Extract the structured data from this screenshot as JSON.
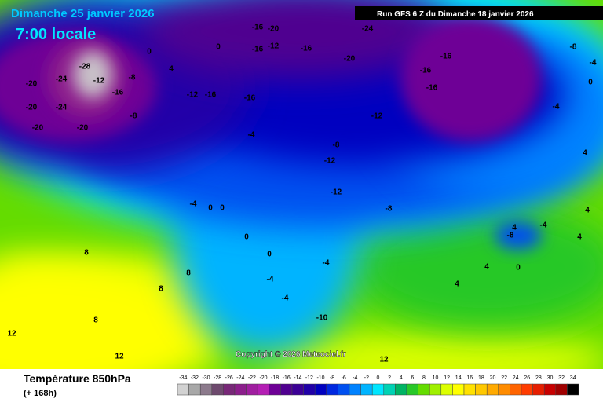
{
  "header": {
    "date": "Dimanche 25 janvier 2026",
    "time": "7:00 locale",
    "run": "Run GFS 6 Z du Dimanche 18 janvier 2026"
  },
  "copyright": "Copyright © 2026 Meteociel.fr",
  "footer": {
    "title": "Température 850hPa",
    "lead": "(+ 168h)"
  },
  "scale": {
    "values": [
      -34,
      -32,
      -30,
      -28,
      -26,
      -24,
      -22,
      -20,
      -18,
      -16,
      -14,
      -12,
      -10,
      -8,
      -6,
      -4,
      -2,
      0,
      2,
      4,
      6,
      8,
      10,
      12,
      14,
      16,
      18,
      20,
      22,
      24,
      26,
      28,
      30,
      32,
      34
    ],
    "colors": [
      "#d2d2d2",
      "#a8a8a8",
      "#8c7a8c",
      "#6e4a6e",
      "#782878",
      "#8c1e8c",
      "#a01ea0",
      "#b41eb4",
      "#6e0096",
      "#500090",
      "#3c0096",
      "#2000a8",
      "#0000c0",
      "#0028e0",
      "#0050f0",
      "#0082ff",
      "#00b4ff",
      "#00e6ff",
      "#00d2b4",
      "#00b464",
      "#28c828",
      "#64dc00",
      "#a0f000",
      "#dcff00",
      "#ffff00",
      "#ffe100",
      "#ffc800",
      "#ffaa00",
      "#ff8c00",
      "#ff6400",
      "#ff3c00",
      "#e61e00",
      "#c80000",
      "#a00000",
      "#000000"
    ]
  },
  "map_labels": [
    "-20",
    "-24",
    "-12",
    "-20",
    "-24",
    "-20",
    "-20",
    "-28",
    "-16",
    "-8",
    "-8",
    "0",
    "-12",
    "-16",
    "-16",
    "-16",
    "-20",
    "-16",
    "-12",
    "-16",
    "-20",
    "-24",
    "-16",
    "-16",
    "-16",
    "-12",
    "-8",
    "-12",
    "-12",
    "-8",
    "-4",
    "-4",
    "0",
    "0",
    "0",
    "0",
    "-4",
    "-4",
    "-4",
    "-10",
    "8",
    "8",
    "8",
    "12",
    "12",
    "12",
    "0",
    "-4",
    "4",
    "4",
    "4",
    "4",
    "4",
    "-8",
    "-4",
    "0",
    "4",
    "-8",
    "-4",
    "0",
    "4",
    "8"
  ]
}
